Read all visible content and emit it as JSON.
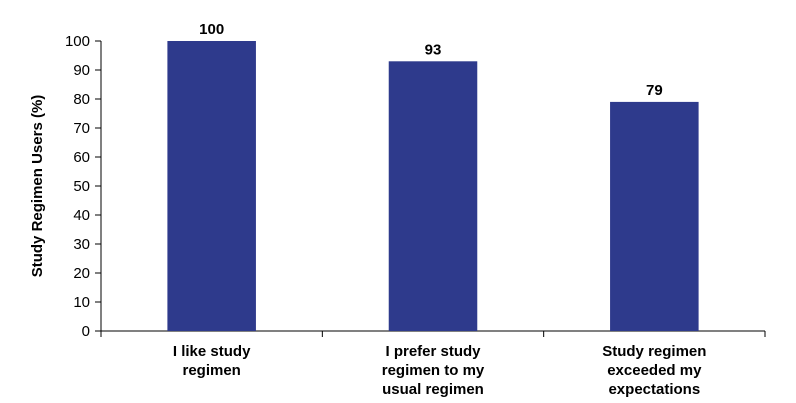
{
  "chart_data": {
    "type": "bar",
    "categories": [
      [
        "I like study",
        "regimen"
      ],
      [
        "I prefer study",
        "regimen to my",
        "usual regimen"
      ],
      [
        "Study regimen",
        "exceeded my",
        "expectations"
      ]
    ],
    "values": [
      100,
      93,
      79
    ],
    "data_labels": [
      "100",
      "93",
      "79"
    ],
    "ylabel": "Study Regimen Users (%)",
    "ylim": [
      0,
      100
    ],
    "yticks": [
      0,
      10,
      20,
      30,
      40,
      50,
      60,
      70,
      80,
      90,
      100
    ],
    "grid": false,
    "legend": "none",
    "bar_color": "#2e3a8c",
    "axis_color": "#000000"
  }
}
